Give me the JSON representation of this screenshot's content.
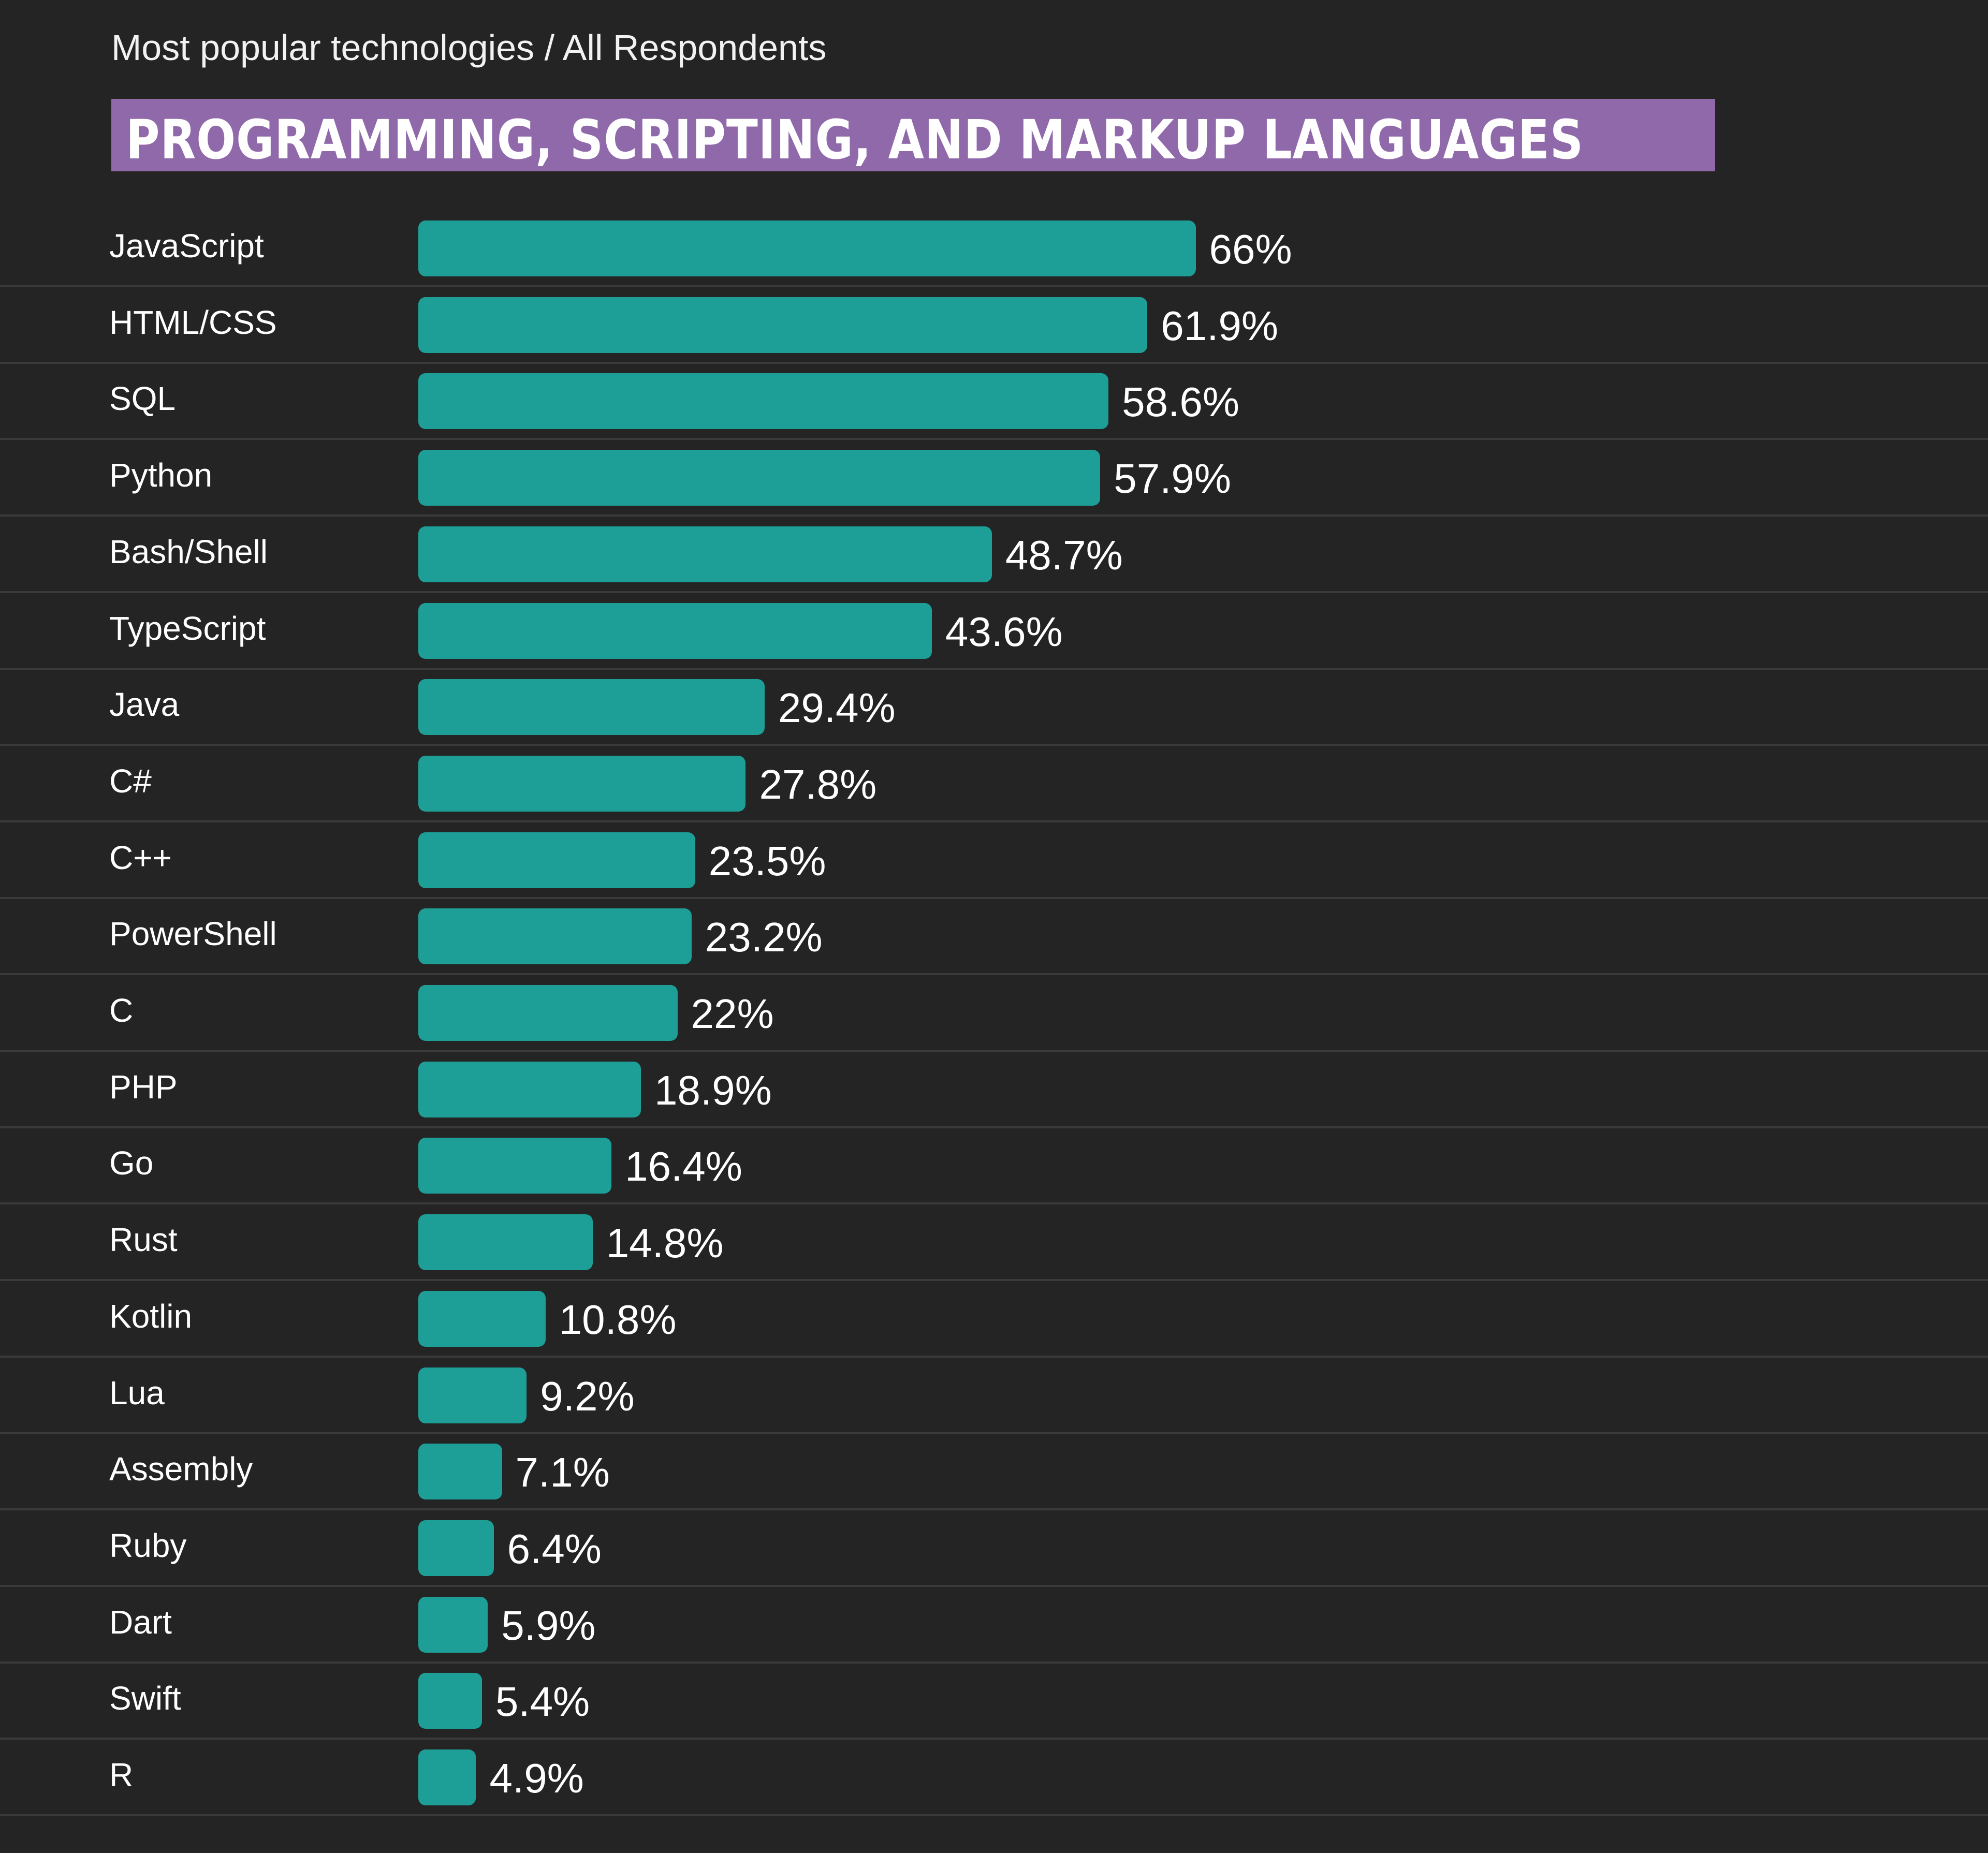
{
  "subtitle": "Most popular technologies / All Respondents",
  "colors": {
    "background": "#242424",
    "title_bg": "#9069aa",
    "bar": "#1d9e96",
    "divider": "#3a3a3a"
  },
  "chart_data": {
    "type": "bar",
    "orientation": "horizontal",
    "title": "PROGRAMMING, SCRIPTING, AND MARKUP LANGUAGES",
    "categories": [
      "JavaScript",
      "HTML/CSS",
      "SQL",
      "Python",
      "Bash/Shell",
      "TypeScript",
      "Java",
      "C#",
      "C++",
      "PowerShell",
      "C",
      "PHP",
      "Go",
      "Rust",
      "Kotlin",
      "Lua",
      "Assembly",
      "Ruby",
      "Dart",
      "Swift",
      "R"
    ],
    "values": [
      66,
      61.9,
      58.6,
      57.9,
      48.7,
      43.6,
      29.4,
      27.8,
      23.5,
      23.2,
      22,
      18.9,
      16.4,
      14.8,
      10.8,
      9.2,
      7.1,
      6.4,
      5.9,
      5.4,
      4.9
    ],
    "value_labels": [
      "66%",
      "61.9%",
      "58.6%",
      "57.9%",
      "48.7%",
      "43.6%",
      "29.4%",
      "27.8%",
      "23.5%",
      "23.2%",
      "22%",
      "18.9%",
      "16.4%",
      "14.8%",
      "10.8%",
      "9.2%",
      "7.1%",
      "6.4%",
      "5.9%",
      "5.4%",
      "4.9%"
    ],
    "unit": "%",
    "grid": false,
    "legend": "none"
  }
}
